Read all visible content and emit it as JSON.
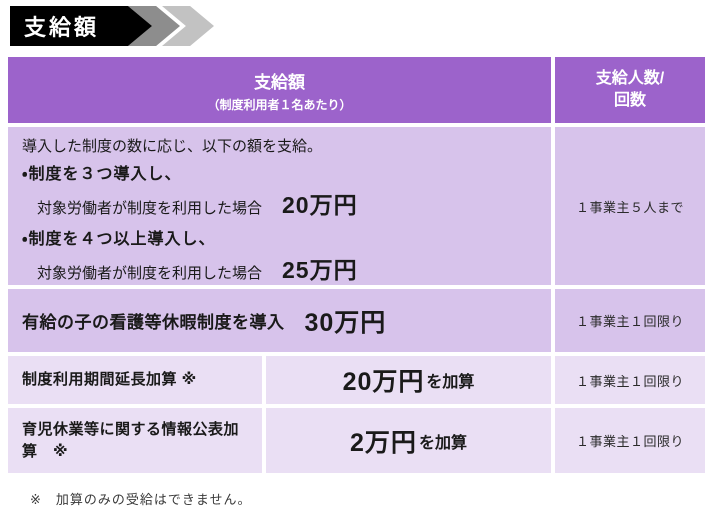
{
  "badge": {
    "label": "支給額"
  },
  "table": {
    "header": {
      "payment_title": "支給額",
      "payment_subtitle": "（制度利用者１名あたり）",
      "count_title": "支給人数/\n回数"
    },
    "row1": {
      "intro": "導入した制度の数に応じ、以下の額を支給。",
      "case1_condition": "・制度を３つ導入し、",
      "case1_detail": "対象労働者が制度を利用した場合",
      "case1_amount": "20万円",
      "case2_condition": "・制度を４つ以上導入し、",
      "case2_detail": "対象労働者が制度を利用した場合",
      "case2_amount": "25万円",
      "limit": "１事業主５人まで"
    },
    "row2": {
      "label": "有給の子の看護等休暇制度を導入",
      "amount": "30万円",
      "limit": "１事業主１回限り"
    },
    "row3": {
      "label": "制度利用期間延長加算 ※",
      "amount": "20万円",
      "amount_suffix": "を加算",
      "limit": "１事業主１回限り"
    },
    "row4": {
      "label": "育児休業等に関する情報公表加算　※",
      "amount": "2万円",
      "amount_suffix": "を加算",
      "limit": "１事業主１回限り"
    }
  },
  "note": "※　加算のみの受給はできません。",
  "colors": {
    "header_purple": "#9C63CB",
    "row_purple": "#D7C3EB",
    "row_light_purple": "#EADFF4",
    "badge_black": "#000000",
    "chevron_dark": "#8D8D8D",
    "chevron_light": "#C2C2C2",
    "text_dark": "#1A1A1A"
  }
}
